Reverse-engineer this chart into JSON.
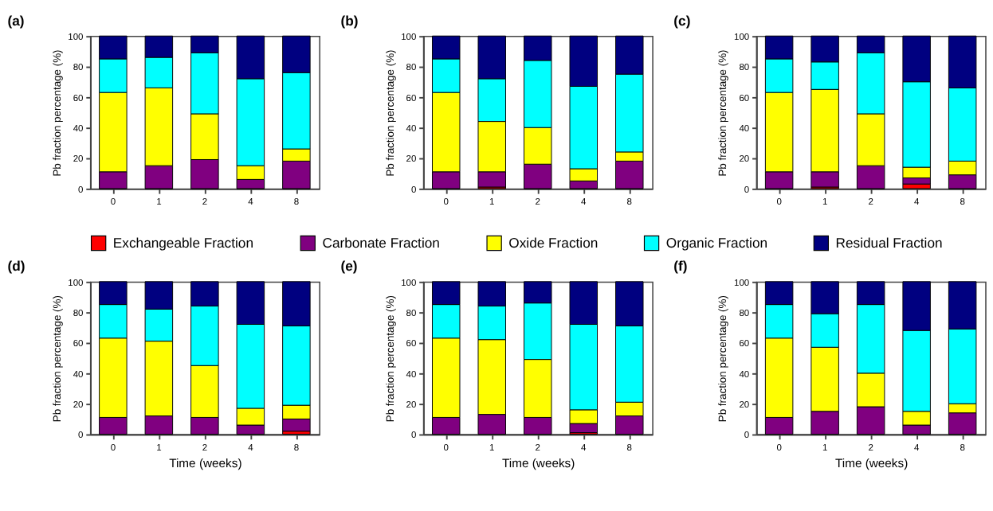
{
  "chart_data": [
    {
      "type": "bar",
      "stacked": true,
      "title": "(a)",
      "ylabel": "Pb fraction percentage (%)",
      "categories": [
        "0",
        "1",
        "2",
        "4",
        "8"
      ],
      "ylim": [
        0,
        100
      ],
      "yticks": [
        0,
        20,
        40,
        60,
        80,
        100
      ],
      "grid": false,
      "legend": "bottom",
      "series": [
        {
          "name": "Exchangeable Fraction",
          "color": "#ff0000",
          "values": [
            0,
            0,
            0,
            0,
            0
          ]
        },
        {
          "name": "Carbonate Fraction",
          "color": "#800080",
          "values": [
            11,
            15,
            19,
            6,
            18
          ]
        },
        {
          "name": "Oxide Fraction",
          "color": "#ffff00",
          "values": [
            52,
            51,
            30,
            9,
            8
          ]
        },
        {
          "name": "Organic Fraction",
          "color": "#00ffff",
          "values": [
            22,
            20,
            40,
            57,
            50
          ]
        },
        {
          "name": "Residual Fraction",
          "color": "#000080",
          "values": [
            15,
            14,
            11,
            28,
            24
          ]
        }
      ]
    },
    {
      "type": "bar",
      "stacked": true,
      "title": "(b)",
      "ylabel": "Pb fraction percentage (%)",
      "categories": [
        "0",
        "1",
        "2",
        "4",
        "8"
      ],
      "ylim": [
        0,
        100
      ],
      "yticks": [
        0,
        20,
        40,
        60,
        80,
        100
      ],
      "grid": false,
      "series": [
        {
          "color": "#ff0000",
          "values": [
            0,
            1,
            0,
            0,
            0
          ]
        },
        {
          "color": "#800080",
          "values": [
            11,
            10,
            16,
            5,
            18
          ]
        },
        {
          "color": "#ffff00",
          "values": [
            52,
            33,
            24,
            8,
            6
          ]
        },
        {
          "color": "#00ffff",
          "values": [
            22,
            28,
            44,
            54,
            51
          ]
        },
        {
          "color": "#000080",
          "values": [
            15,
            28,
            16,
            33,
            25
          ]
        }
      ]
    },
    {
      "type": "bar",
      "stacked": true,
      "title": "(c)",
      "ylabel": "Pb fraction percentage (%)",
      "categories": [
        "0",
        "1",
        "2",
        "4",
        "8"
      ],
      "ylim": [
        0,
        100
      ],
      "yticks": [
        0,
        20,
        40,
        60,
        80,
        100
      ],
      "grid": false,
      "series": [
        {
          "color": "#ff0000",
          "values": [
            0,
            1,
            0,
            3,
            0
          ]
        },
        {
          "color": "#800080",
          "values": [
            11,
            10,
            15,
            4,
            9
          ]
        },
        {
          "color": "#ffff00",
          "values": [
            52,
            54,
            34,
            7,
            9
          ]
        },
        {
          "color": "#00ffff",
          "values": [
            22,
            18,
            40,
            56,
            48
          ]
        },
        {
          "color": "#000080",
          "values": [
            15,
            17,
            11,
            30,
            34
          ]
        }
      ]
    },
    {
      "type": "bar",
      "stacked": true,
      "title": "(d)",
      "ylabel": "Pb fraction percentage (%)",
      "xlabel": "Time (weeks)",
      "categories": [
        "0",
        "1",
        "2",
        "4",
        "8"
      ],
      "ylim": [
        0,
        100
      ],
      "yticks": [
        0,
        20,
        40,
        60,
        80,
        100
      ],
      "grid": false,
      "series": [
        {
          "color": "#ff0000",
          "values": [
            0,
            0,
            0,
            0,
            2
          ]
        },
        {
          "color": "#800080",
          "values": [
            11,
            12,
            11,
            6,
            8
          ]
        },
        {
          "color": "#ffff00",
          "values": [
            52,
            49,
            34,
            11,
            9
          ]
        },
        {
          "color": "#00ffff",
          "values": [
            22,
            21,
            39,
            55,
            52
          ]
        },
        {
          "color": "#000080",
          "values": [
            15,
            18,
            16,
            28,
            29
          ]
        }
      ]
    },
    {
      "type": "bar",
      "stacked": true,
      "title": "(e)",
      "ylabel": "Pb fraction percentage (%)",
      "xlabel": "Time (weeks)",
      "categories": [
        "0",
        "1",
        "2",
        "4",
        "8"
      ],
      "ylim": [
        0,
        100
      ],
      "yticks": [
        0,
        20,
        40,
        60,
        80,
        100
      ],
      "grid": false,
      "series": [
        {
          "color": "#ff0000",
          "values": [
            0,
            0,
            0,
            1,
            0
          ]
        },
        {
          "color": "#800080",
          "values": [
            11,
            13,
            11,
            6,
            12
          ]
        },
        {
          "color": "#ffff00",
          "values": [
            52,
            49,
            38,
            9,
            9
          ]
        },
        {
          "color": "#00ffff",
          "values": [
            22,
            22,
            37,
            56,
            50
          ]
        },
        {
          "color": "#000080",
          "values": [
            15,
            16,
            14,
            28,
            29
          ]
        }
      ]
    },
    {
      "type": "bar",
      "stacked": true,
      "title": "(f)",
      "ylabel": "Pb fraction percentage (%)",
      "xlabel": "Time (weeks)",
      "categories": [
        "0",
        "1",
        "2",
        "4",
        "8"
      ],
      "ylim": [
        0,
        100
      ],
      "yticks": [
        0,
        20,
        40,
        60,
        80,
        100
      ],
      "grid": false,
      "series": [
        {
          "color": "#ff0000",
          "values": [
            0,
            0,
            0,
            0,
            0
          ]
        },
        {
          "color": "#800080",
          "values": [
            11,
            15,
            18,
            6,
            14
          ]
        },
        {
          "color": "#ffff00",
          "values": [
            52,
            42,
            22,
            9,
            6
          ]
        },
        {
          "color": "#00ffff",
          "values": [
            22,
            22,
            45,
            53,
            49
          ]
        },
        {
          "color": "#000080",
          "values": [
            15,
            21,
            15,
            32,
            31
          ]
        }
      ]
    }
  ]
}
